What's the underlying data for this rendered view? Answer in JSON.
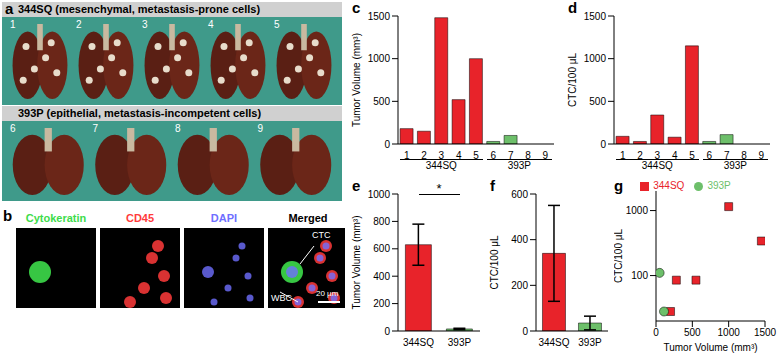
{
  "photo_panels": {
    "a": {
      "label": "a",
      "groups": [
        {
          "title": "344SQ (mesenchymal, metastasis-prone cells)",
          "mice": [
            "1",
            "2",
            "3",
            "4",
            "5"
          ]
        },
        {
          "title": "393P (epithelial, metastasis-incompetent cells)",
          "mice": [
            "6",
            "7",
            "8",
            "9"
          ]
        }
      ]
    },
    "b": {
      "label": "b",
      "channels": [
        {
          "name": "Cytokeratin",
          "color": "#3ddc4a"
        },
        {
          "name": "CD45",
          "color": "#ff3b3b"
        },
        {
          "name": "DAPI",
          "color": "#6f6fff"
        },
        {
          "name": "Merged",
          "color": "#ffffff"
        }
      ],
      "annotations": [
        "CTC",
        "WBC"
      ],
      "scale_bar": "20 µm"
    }
  },
  "chart_data": [
    {
      "panel": "c",
      "type": "bar",
      "categories": [
        "1",
        "2",
        "3",
        "4",
        "5",
        "6",
        "7",
        "8",
        "9"
      ],
      "series": [
        {
          "name": "344SQ",
          "color": "#e8232a",
          "values": [
            180,
            150,
            1480,
            520,
            1000,
            null,
            null,
            null,
            null
          ]
        },
        {
          "name": "393P",
          "color": "#6dbf6a",
          "values": [
            null,
            null,
            null,
            null,
            null,
            30,
            100,
            0,
            0
          ]
        }
      ],
      "y_label": "Tumor Volume (mm³)",
      "ylim": [
        0,
        1500
      ],
      "yticks": [
        0,
        500,
        1000,
        1500
      ]
    },
    {
      "panel": "d",
      "type": "bar",
      "categories": [
        "1",
        "2",
        "3",
        "4",
        "5",
        "6",
        "7",
        "8",
        "9"
      ],
      "series": [
        {
          "name": "344SQ",
          "color": "#e8232a",
          "values": [
            90,
            30,
            340,
            80,
            1150,
            null,
            null,
            null,
            null
          ]
        },
        {
          "name": "393P",
          "color": "#6dbf6a",
          "values": [
            null,
            null,
            null,
            null,
            null,
            30,
            110,
            0,
            0
          ]
        }
      ],
      "y_label": "CTC/100 μL",
      "ylim": [
        0,
        1500
      ],
      "yticks": [
        0,
        500,
        1000,
        1500
      ]
    },
    {
      "panel": "e",
      "type": "bar",
      "categories": [
        "344SQ",
        "393P"
      ],
      "values": [
        630,
        15
      ],
      "errors": [
        150,
        5
      ],
      "colors": [
        "#e8232a",
        "#6dbf6a"
      ],
      "y_label": "Tumor Volume (mm³)",
      "ylim": [
        0,
        1000
      ],
      "yticks": [
        0,
        200,
        400,
        600,
        800,
        1000
      ],
      "annotation": "*"
    },
    {
      "panel": "f",
      "type": "bar",
      "categories": [
        "344SQ",
        "393P"
      ],
      "values": [
        340,
        35
      ],
      "errors": [
        210,
        30
      ],
      "colors": [
        "#e8232a",
        "#6dbf6a"
      ],
      "y_label": "CTC/100 μL",
      "ylim": [
        0,
        600
      ],
      "yticks": [
        0,
        200,
        400,
        600
      ]
    },
    {
      "panel": "g",
      "type": "scatter",
      "series": [
        {
          "name": "344SQ",
          "color": "#e8232a",
          "marker": "square",
          "x": [
            200,
            280,
            550,
            1000,
            1450
          ],
          "y": [
            28,
            85,
            85,
            1150,
            340
          ]
        },
        {
          "name": "393P",
          "color": "#6dbf6a",
          "marker": "circle",
          "x": [
            50,
            110
          ],
          "y": [
            110,
            28
          ]
        }
      ],
      "x_label": "Tumor Volume (mm³)",
      "y_label": "CTC/100 μL",
      "xlim": [
        0,
        1500
      ],
      "xticks": [
        0,
        500,
        1000,
        1500
      ],
      "ylim": [
        20,
        2000
      ],
      "yticks": [
        100,
        1000
      ],
      "log": "y",
      "legend": "top"
    }
  ]
}
